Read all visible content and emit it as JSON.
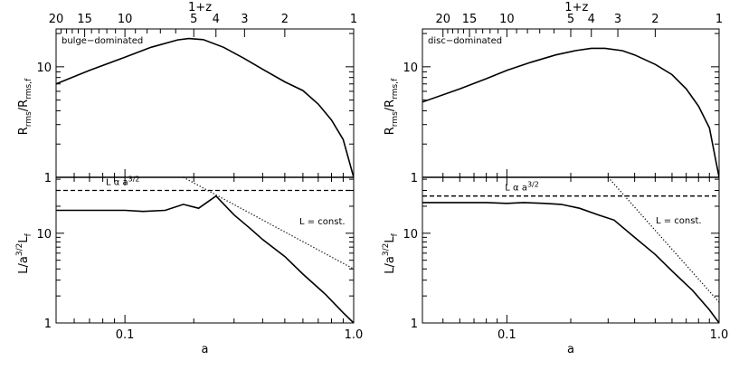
{
  "chart_data": [
    {
      "type": "line",
      "panel": "left",
      "top_axis": {
        "label": "1+z",
        "ticks": [
          "20",
          "15",
          "10",
          "5",
          "4",
          "3",
          "2",
          "1"
        ],
        "values": [
          20,
          15,
          10,
          5,
          4,
          3,
          2,
          1
        ]
      },
      "xlabel": "a",
      "x_scale": "log",
      "xlim": [
        0.05,
        1.0
      ],
      "x_ticks": [
        "0.1",
        "1.0"
      ],
      "upper": {
        "ylabel_main": "R",
        "ylabel_sub1": "rms",
        "ylabel_mid": "/R",
        "ylabel_sub2": "rms,f",
        "y_scale": "log",
        "ylim": [
          1,
          22
        ],
        "y_ticks": [
          "10",
          "1"
        ],
        "annotation": "bulge−dominated",
        "series": [
          {
            "x": [
              0.05,
              0.07,
              0.1,
              0.13,
              0.17,
              0.19,
              0.22,
              0.27,
              0.33,
              0.4,
              0.5,
              0.6,
              0.7,
              0.8,
              0.9,
              1.0
            ],
            "y": [
              7.0,
              9.3,
              12.2,
              15.0,
              17.5,
              18.0,
              17.6,
              15.0,
              12.0,
              9.5,
              7.3,
              6.1,
              4.6,
              3.3,
              2.2,
              1.0
            ]
          }
        ]
      },
      "lower": {
        "ylabel_main": "L/a",
        "ylabel_sup": "3/2",
        "ylabel_tail": "L",
        "ylabel_sub": "f",
        "y_scale": "log",
        "ylim": [
          1,
          42
        ],
        "y_ticks": [
          "10",
          "1"
        ],
        "ann_scaling_main": "L α a",
        "ann_scaling_sup": "3/2",
        "ann_const": "L = const.",
        "series": [
          {
            "style": "solid",
            "x": [
              0.05,
              0.07,
              0.1,
              0.12,
              0.15,
              0.18,
              0.21,
              0.25,
              0.3,
              0.35,
              0.4,
              0.5,
              0.6,
              0.75,
              0.9,
              1.0
            ],
            "y": [
              18,
              18,
              18,
              17.5,
              18,
              21,
              19,
              26,
              16,
              11.5,
              8.5,
              5.5,
              3.5,
              2.1,
              1.3,
              1.0
            ]
          },
          {
            "style": "dashed",
            "x": [
              0.05,
              1.0
            ],
            "y": [
              30,
              30
            ]
          },
          {
            "style": "dotted",
            "x": [
              0.18,
              1.0
            ],
            "y": [
              42,
              4.0
            ]
          }
        ]
      }
    },
    {
      "type": "line",
      "panel": "right",
      "top_axis": {
        "label": "1+z",
        "ticks": [
          "20",
          "15",
          "10",
          "5",
          "4",
          "3",
          "2",
          "1"
        ],
        "values": [
          20,
          15,
          10,
          5,
          4,
          3,
          2,
          1
        ]
      },
      "xlabel": "a",
      "x_scale": "log",
      "xlim": [
        0.04,
        1.0
      ],
      "x_ticks": [
        "0.1",
        "1.0"
      ],
      "upper": {
        "ylabel_main": "R",
        "ylabel_sub1": "rms",
        "ylabel_mid": "/R",
        "ylabel_sub2": "rms,f",
        "y_scale": "log",
        "ylim": [
          1,
          22
        ],
        "y_ticks": [
          "10",
          "1"
        ],
        "annotation": "disc−dominated",
        "series": [
          {
            "x": [
              0.04,
              0.06,
              0.08,
              0.1,
              0.13,
              0.17,
              0.21,
              0.25,
              0.29,
              0.35,
              0.4,
              0.5,
              0.6,
              0.7,
              0.8,
              0.9,
              1.0
            ],
            "y": [
              4.8,
              6.3,
              7.8,
              9.3,
              11.0,
              12.8,
              14.0,
              14.7,
              14.7,
              14.0,
              12.8,
              10.5,
              8.5,
              6.3,
              4.4,
              2.8,
              1.0
            ]
          }
        ]
      },
      "lower": {
        "ylabel_main": "L/a",
        "ylabel_sup": "3/2",
        "ylabel_tail": "L",
        "ylabel_sub": "f",
        "y_scale": "log",
        "ylim": [
          1,
          42
        ],
        "y_ticks": [
          "10",
          "1"
        ],
        "ann_scaling_main": "L α a",
        "ann_scaling_sup": "3/2",
        "ann_const": "L = const.",
        "series": [
          {
            "style": "solid",
            "x": [
              0.04,
              0.06,
              0.08,
              0.1,
              0.12,
              0.15,
              0.18,
              0.22,
              0.27,
              0.32,
              0.4,
              0.5,
              0.6,
              0.75,
              0.9,
              1.0
            ],
            "y": [
              22,
              22,
              22,
              21.5,
              22,
              21.5,
              21,
              19,
              16,
              14,
              9,
              5.8,
              3.8,
              2.3,
              1.4,
              1.0
            ]
          },
          {
            "style": "dashed",
            "x": [
              0.04,
              1.0
            ],
            "y": [
              26,
              26
            ]
          },
          {
            "style": "dotted",
            "x": [
              0.3,
              1.0
            ],
            "y": [
              42,
              1.7
            ]
          }
        ]
      }
    }
  ]
}
